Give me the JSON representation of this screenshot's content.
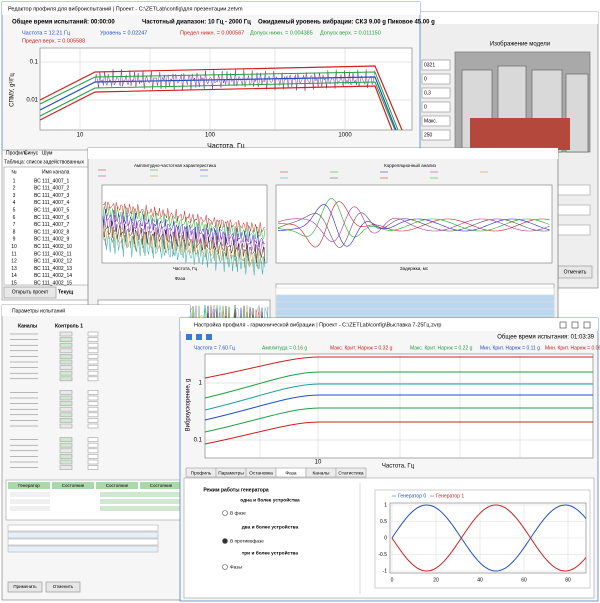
{
  "background_window": {
    "image_title": "Изображение модели",
    "fields": [
      "0321",
      "0",
      "0,3",
      "0",
      "Макс.",
      "250"
    ],
    "button": "Отменить"
  },
  "profile_editor": {
    "title": "Редактор профиля для виброиспытаний | Проект - C:\\ZETLab\\config\\для презентации.zetvm",
    "total_time": "Общее время испытаний: 00:00:00",
    "freq_range": "Частотный диапазон: 10 Гц - 2000 Гц",
    "expected_level": "Ожидаемый уровень вибрации: СКЗ 9.00 g   Пиковое 45.00 g",
    "readouts": [
      "Частота = 12.21 Гц",
      "Уровень = 0.02247",
      "Предел нижн. = 0.000567",
      "Допуск нижн. = 0.004385",
      "Допуск верх. = 0.011150",
      "Предел верх. = 0.005588"
    ],
    "y_axis_label": "СПМУ, g²/Гц",
    "x_axis_label": "Частота, Гц",
    "x_ticks": [
      "10",
      "100",
      "1000"
    ],
    "y_ticks": [
      "0.1",
      "0.01"
    ]
  },
  "channel_panel": {
    "tabs": [
      "Профиль",
      "Синус",
      "Шум"
    ],
    "table_title": "Таблица: список задействованных",
    "columns": [
      "№",
      "Имя канала"
    ],
    "rows": [
      [
        "1",
        "ВС 111_4007_1"
      ],
      [
        "2",
        "ВС 111_4007_2"
      ],
      [
        "3",
        "ВС 111_4007_3"
      ],
      [
        "4",
        "ВС 111_4007_4"
      ],
      [
        "5",
        "ВС 111_4007_5"
      ],
      [
        "6",
        "ВС 111_4007_6"
      ],
      [
        "7",
        "ВС 111_4007_7"
      ],
      [
        "8",
        "ВС 111_4002_8"
      ],
      [
        "9",
        "ВС 111_4002_9"
      ],
      [
        "10",
        "ВС 111_4002_10"
      ],
      [
        "11",
        "ВС 111_4002_11"
      ],
      [
        "12",
        "ВС 111_4002_12"
      ],
      [
        "13",
        "ВС 111_4002_13"
      ],
      [
        "14",
        "ВС 111_4002_14"
      ],
      [
        "15",
        "ВС 111_4002_15"
      ]
    ],
    "button": "Открыть проект",
    "side_label": "Текущ"
  },
  "analysis_window": {
    "left_title": "Амплитудно-частотная характеристика",
    "right_title": "Корреляционный анализ",
    "phase_title": "Фаза",
    "x_label": "Частота, Гц",
    "right_x_label": "Задержка, мс"
  },
  "params_window": {
    "title": "Параметры испытаний",
    "columns": [
      "Каналы",
      "Контроль 1"
    ],
    "generator_columns": [
      "Генератор",
      "Состояние",
      "Состояние",
      "Состояние"
    ],
    "buttons": [
      "Применить",
      "Отменить"
    ]
  },
  "harmonic_window": {
    "title": "Настройка профиля - гармонической вибрации | Проект - C:\\ZETLab\\config\\Выставка 7-25Гц.zvrp",
    "total_time": "Общее время испытания: 01:03:39",
    "readouts": [
      "Частота = 7.60 Гц",
      "Амплитуда = 0.16 g",
      "Макс. Крит. Нарнж = 0.32 g",
      "Макс. Крит. Нарнж = 0.22 g",
      "Мин. Крит. Нарнж = 0.11 g",
      "Мин. Крит. Нарнж = 0.06 g"
    ],
    "y_axis_label": "Виброускорение, g",
    "x_axis_label": "Частота, Гц",
    "y_ticks": [
      "1",
      "0.1"
    ],
    "x_ticks": [
      "10"
    ],
    "tabs": [
      "Профиль",
      "Параметры",
      "Остановка",
      "Фаза",
      "Каналы",
      "Статистика"
    ],
    "mode_title": "Режим работы генератора",
    "mode_options": [
      "одна и более устройства",
      "В фазе",
      "два и более устройства",
      "В противофазе",
      "три и более устройства",
      "Фазы"
    ],
    "sine_legend": [
      "Генератор 0",
      "Генератор 1"
    ],
    "sine_y_ticks": [
      "1",
      "0.5",
      "0",
      "-0.5",
      "-1"
    ],
    "sine_x_ticks": [
      "0",
      "20",
      "40",
      "60",
      "80"
    ]
  }
}
